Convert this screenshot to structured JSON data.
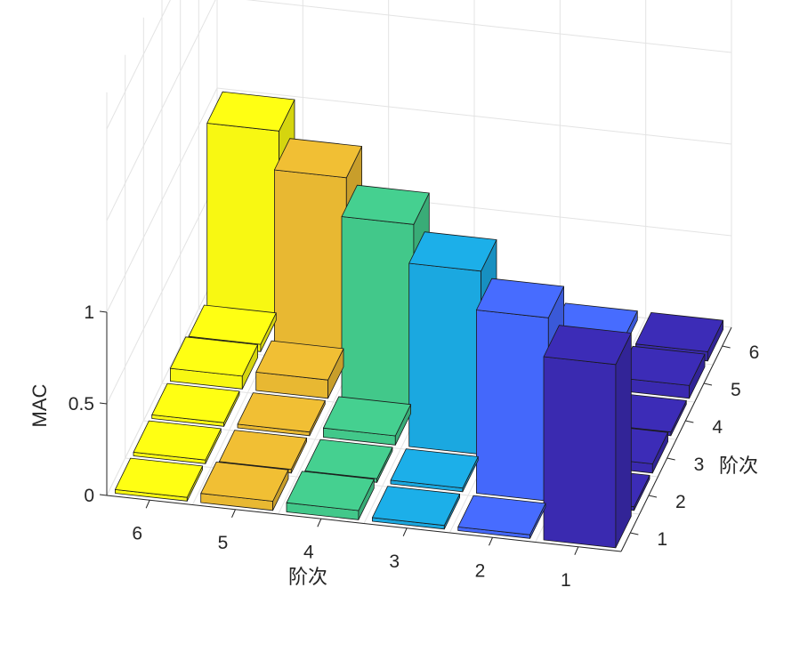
{
  "chart_data": {
    "type": "bar3d",
    "title": "",
    "xlabel": "阶次",
    "ylabel": "阶次",
    "zlabel": "MAC",
    "x_categories": [
      "1",
      "2",
      "3",
      "4",
      "5",
      "6"
    ],
    "y_categories": [
      "1",
      "2",
      "3",
      "4",
      "5",
      "6"
    ],
    "zlim": [
      0,
      1
    ],
    "z_ticks": [
      "0",
      "0.5",
      "1"
    ],
    "grid": true,
    "colors": [
      "#3a2ab0",
      "#4468fb",
      "#1ba8e0",
      "#42c88a",
      "#e8b832",
      "#f8f812"
    ],
    "matrix": [
      [
        1.0,
        0.02,
        0.02,
        0.05,
        0.05,
        0.02
      ],
      [
        0.02,
        1.0,
        0.02,
        0.02,
        0.02,
        0.02
      ],
      [
        0.05,
        0.02,
        1.0,
        0.05,
        0.02,
        0.02
      ],
      [
        0.02,
        0.02,
        0.1,
        1.0,
        0.1,
        0.07
      ],
      [
        0.07,
        0.07,
        0.1,
        0.1,
        1.0,
        0.04
      ],
      [
        0.05,
        0.05,
        0.1,
        0.1,
        0.02,
        1.0
      ]
    ]
  }
}
